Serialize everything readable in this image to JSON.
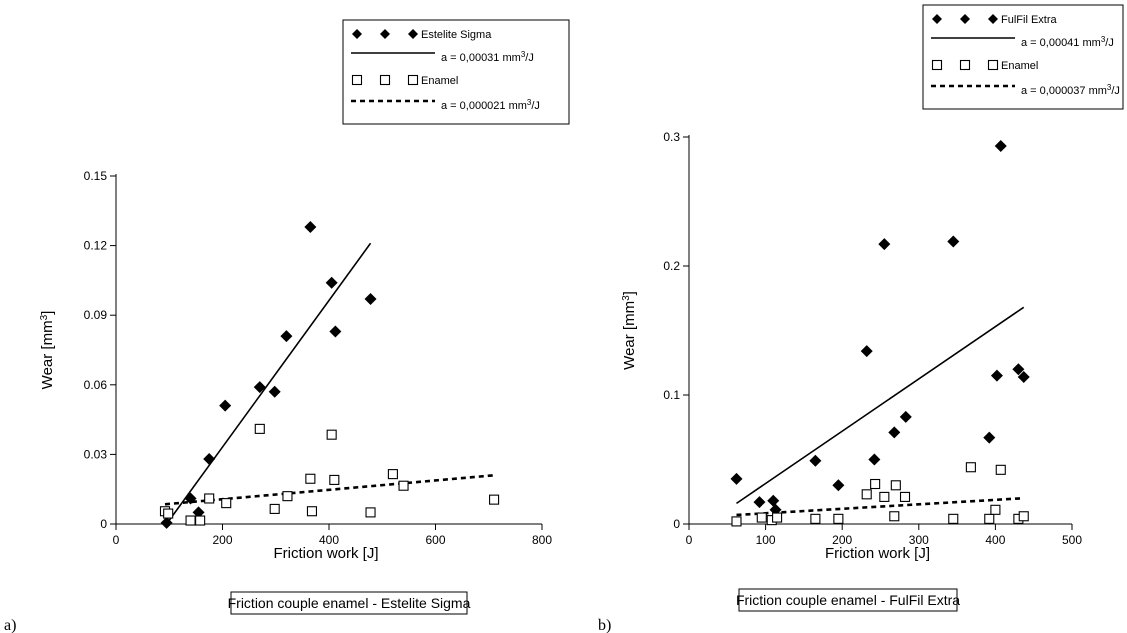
{
  "chart_data": [
    {
      "type": "scatter",
      "panel_label": "a)",
      "caption": "Friction couple enamel - Estelite Sigma",
      "xlabel": "Friction work [J]",
      "ylabel_main": "Wear [mm",
      "ylabel_sup": "3",
      "ylabel_end": "]",
      "xlim": [
        0,
        800
      ],
      "ylim": [
        0,
        0.15
      ],
      "xticks": [
        "0",
        "200",
        "400",
        "600",
        "800"
      ],
      "yticks": [
        "0",
        "0.03",
        "0.06",
        "0.09",
        "0.12",
        "0.15"
      ],
      "legend_placement": "top-right",
      "series": [
        {
          "name": "Estelite Sigma",
          "marker": "filled-diamond",
          "color": "#000000",
          "x": [
            95,
            140,
            155,
            175,
            205,
            270,
            298,
            320,
            365,
            405,
            412,
            478
          ],
          "y": [
            0.0005,
            0.011,
            0.005,
            0.028,
            0.051,
            0.059,
            0.057,
            0.081,
            0.128,
            0.104,
            0.083,
            0.097
          ]
        },
        {
          "name": "Enamel",
          "marker": "open-square",
          "color": "#000000",
          "x": [
            92,
            98,
            140,
            158,
            175,
            207,
            270,
            298,
            322,
            365,
            368,
            405,
            410,
            478,
            520,
            540,
            710
          ],
          "y": [
            0.0055,
            0.0045,
            0.0015,
            0.0015,
            0.011,
            0.009,
            0.041,
            0.0065,
            0.012,
            0.0195,
            0.0055,
            0.0385,
            0.019,
            0.005,
            0.0215,
            0.0165,
            0.0105
          ]
        }
      ],
      "fits": [
        {
          "label_pre": "a = 0,00031 mm",
          "label_sup": "3",
          "label_post": "/J",
          "style": "solid",
          "x": [
            95,
            478
          ],
          "y": [
            0.0,
            0.121
          ]
        },
        {
          "label_pre": "a = 0,000021 mm",
          "label_sup": "3",
          "label_post": "/J",
          "style": "dashed",
          "x": [
            92,
            710
          ],
          "y": [
            0.0085,
            0.021
          ]
        }
      ]
    },
    {
      "type": "scatter",
      "panel_label": "b)",
      "caption": "Friction couple enamel - FulFil Extra",
      "xlabel": "Friction work [J]",
      "ylabel_main": "Wear [mm",
      "ylabel_sup": "3",
      "ylabel_end": "]",
      "xlim": [
        0,
        500
      ],
      "ylim": [
        0,
        0.3
      ],
      "xticks": [
        "0",
        "100",
        "200",
        "300",
        "400",
        "500"
      ],
      "yticks": [
        "0",
        "0.1",
        "0.2",
        "0.3"
      ],
      "legend_placement": "top-right",
      "series": [
        {
          "name": "FulFil Extra",
          "marker": "filled-diamond",
          "color": "#000000",
          "x": [
            62,
            92,
            110,
            113,
            165,
            195,
            232,
            242,
            255,
            268,
            283,
            345,
            392,
            402,
            407,
            430,
            437
          ],
          "y": [
            0.035,
            0.017,
            0.018,
            0.011,
            0.049,
            0.03,
            0.134,
            0.05,
            0.217,
            0.071,
            0.083,
            0.219,
            0.067,
            0.115,
            0.293,
            0.12,
            0.114
          ]
        },
        {
          "name": "Enamel",
          "marker": "open-square",
          "color": "#000000",
          "x": [
            62,
            95,
            108,
            115,
            165,
            195,
            232,
            243,
            255,
            268,
            270,
            282,
            345,
            368,
            392,
            400,
            407,
            430,
            437
          ],
          "y": [
            0.002,
            0.005,
            0.003,
            0.005,
            0.004,
            0.004,
            0.023,
            0.031,
            0.021,
            0.006,
            0.03,
            0.021,
            0.004,
            0.044,
            0.004,
            0.011,
            0.042,
            0.004,
            0.006
          ]
        }
      ],
      "fits": [
        {
          "label_pre": "a = 0,00041 mm",
          "label_sup": "3",
          "label_post": "/J",
          "style": "solid",
          "x": [
            62,
            437
          ],
          "y": [
            0.016,
            0.168
          ]
        },
        {
          "label_pre": "a = 0,000037 mm",
          "label_sup": "3",
          "label_post": "/J",
          "style": "dashed",
          "x": [
            62,
            437
          ],
          "y": [
            0.007,
            0.02
          ]
        }
      ]
    }
  ]
}
